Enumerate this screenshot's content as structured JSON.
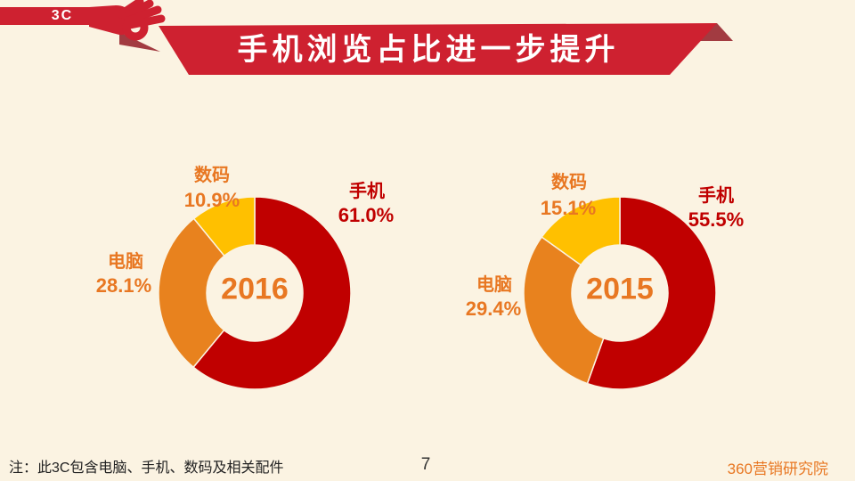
{
  "slide": {
    "tag": "3C",
    "title": "手机浏览占比进一步提升",
    "note": "注：此3C包含电脑、手机、数码及相关配件",
    "page_number": "7",
    "brand": "360营销研究院"
  },
  "colors": {
    "background": "#FBF3E2",
    "banner_red": "#CE2130",
    "banner_fold_dark": "#A23B41",
    "pie_red": "#C00000",
    "pie_orange": "#E8821E",
    "pie_yellow": "#FFC000",
    "label_orange": "#E87722",
    "label_red": "#C00000",
    "footer_text": "#222222"
  },
  "chart_data": [
    {
      "type": "pie",
      "subtype": "donut",
      "title": "2016",
      "center_label": "2016",
      "categories": [
        "手机",
        "电脑",
        "数码"
      ],
      "values": [
        61.0,
        28.1,
        10.9
      ],
      "labels": [
        "61.0%",
        "28.1%",
        "10.9%"
      ],
      "colors": [
        "#C00000",
        "#E8821E",
        "#FFC000"
      ],
      "start_angle_deg": 0,
      "direction": "clockwise",
      "legend": "none"
    },
    {
      "type": "pie",
      "subtype": "donut",
      "title": "2015",
      "center_label": "2015",
      "categories": [
        "手机",
        "电脑",
        "数码"
      ],
      "values": [
        55.5,
        29.4,
        15.1
      ],
      "labels": [
        "55.5%",
        "29.4%",
        "15.1%"
      ],
      "colors": [
        "#C00000",
        "#E8821E",
        "#FFC000"
      ],
      "start_angle_deg": 0,
      "direction": "clockwise",
      "legend": "none"
    }
  ]
}
